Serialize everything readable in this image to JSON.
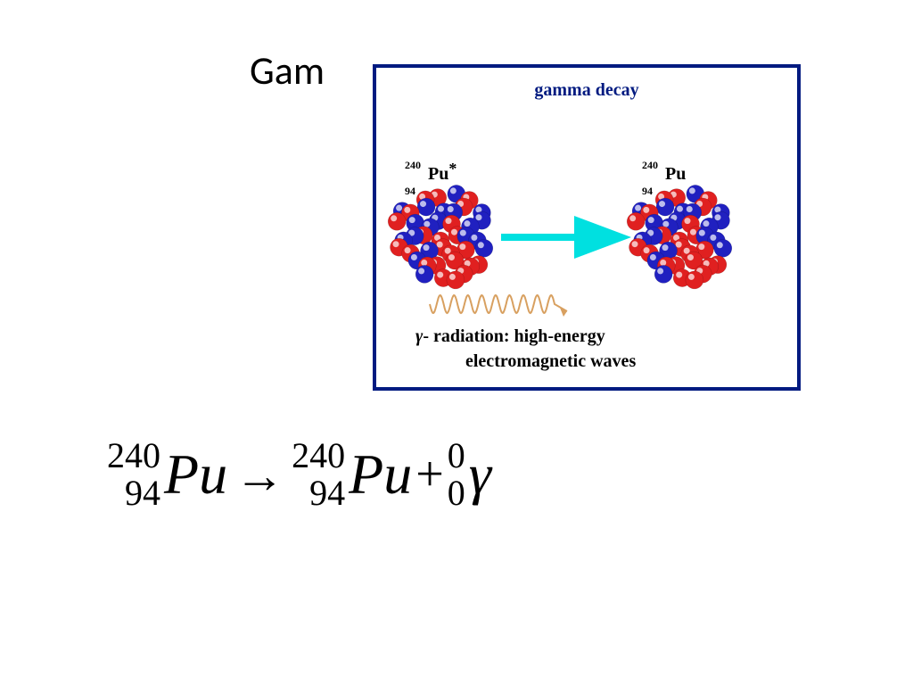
{
  "slide": {
    "title_fragment": "Gam",
    "title_fontsize": 44,
    "title_color": "#000000",
    "background_color": "#ffffff"
  },
  "diagram": {
    "type": "infographic",
    "border_color": "#001a80",
    "border_width": 4,
    "background_color": "#ffffff",
    "title": "gamma decay",
    "title_color": "#001a80",
    "title_fontsize": 20,
    "left_isotope": {
      "mass": "240",
      "atomic": "94",
      "symbol": "Pu",
      "excited": "*"
    },
    "right_isotope": {
      "mass": "240",
      "atomic": "94",
      "symbol": "Pu",
      "excited": ""
    },
    "arrow_color": "#00e0e0",
    "wave_color": "#d8a060",
    "nucleus": {
      "colors": [
        "#e02020",
        "#2020c0"
      ],
      "highlight": "#ffffff",
      "radius": 60,
      "nucleon_radius": 10
    },
    "caption_line1_prefix": "γ",
    "caption_line1_rest": "- radiation: high-energy",
    "caption_line2": "electromagnetic waves",
    "caption_fontsize": 20
  },
  "equation": {
    "term1": {
      "mass": "240",
      "atomic": "94",
      "symbol": "Pu"
    },
    "arrow": "→",
    "term2": {
      "mass": "240",
      "atomic": "94",
      "symbol": "Pu"
    },
    "plus": "+",
    "term3": {
      "mass": "0",
      "atomic": "0",
      "symbol": "γ"
    },
    "fontsize": 64,
    "script_fontsize": 40,
    "color": "#000000"
  }
}
